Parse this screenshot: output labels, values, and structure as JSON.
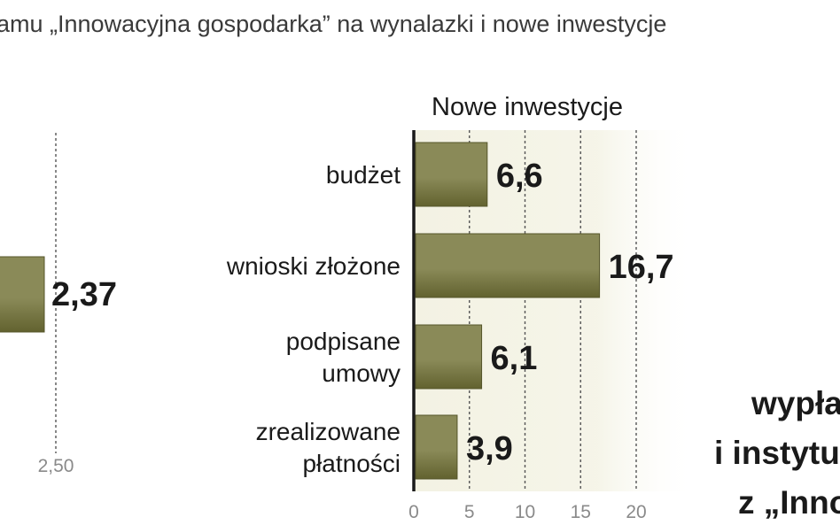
{
  "header": {
    "cropped_title": "amu „Innowacyjna gospodarka” na wynalazki i nowe inwestycje"
  },
  "chart_data": [
    {
      "type": "bar",
      "orientation": "horizontal",
      "title": "Nowe inwestycje",
      "categories": [
        "budżet",
        "wnioski złożone",
        "podpisane umowy",
        "zrealizowane płatności"
      ],
      "category_lines": [
        [
          "budżet"
        ],
        [
          "wnioski złożone"
        ],
        [
          "podpisane",
          "umowy"
        ],
        [
          "zrealizowane",
          "płatności"
        ]
      ],
      "values": [
        6.6,
        16.7,
        6.1,
        3.9
      ],
      "value_labels": [
        "6,6",
        "16,7",
        "6,1",
        "3,9"
      ],
      "xlim": [
        0,
        20
      ],
      "xticks": [
        0,
        5,
        10,
        15,
        20
      ],
      "xtick_labels": [
        "0",
        "5",
        "10",
        "15",
        "20"
      ],
      "grid": true,
      "colors": {
        "bar": "#8a8a58",
        "bar_dark": "#62622f",
        "band": "#f3f2e3",
        "grid": "#555555"
      }
    },
    {
      "type": "bar",
      "orientation": "horizontal",
      "partial": true,
      "values": [
        2.37
      ],
      "value_labels": [
        "2,37"
      ],
      "xtick_labels": [
        "2,50"
      ]
    }
  ],
  "side_text": {
    "lines": [
      "wypła",
      "i instytu",
      "z „Inno"
    ]
  }
}
